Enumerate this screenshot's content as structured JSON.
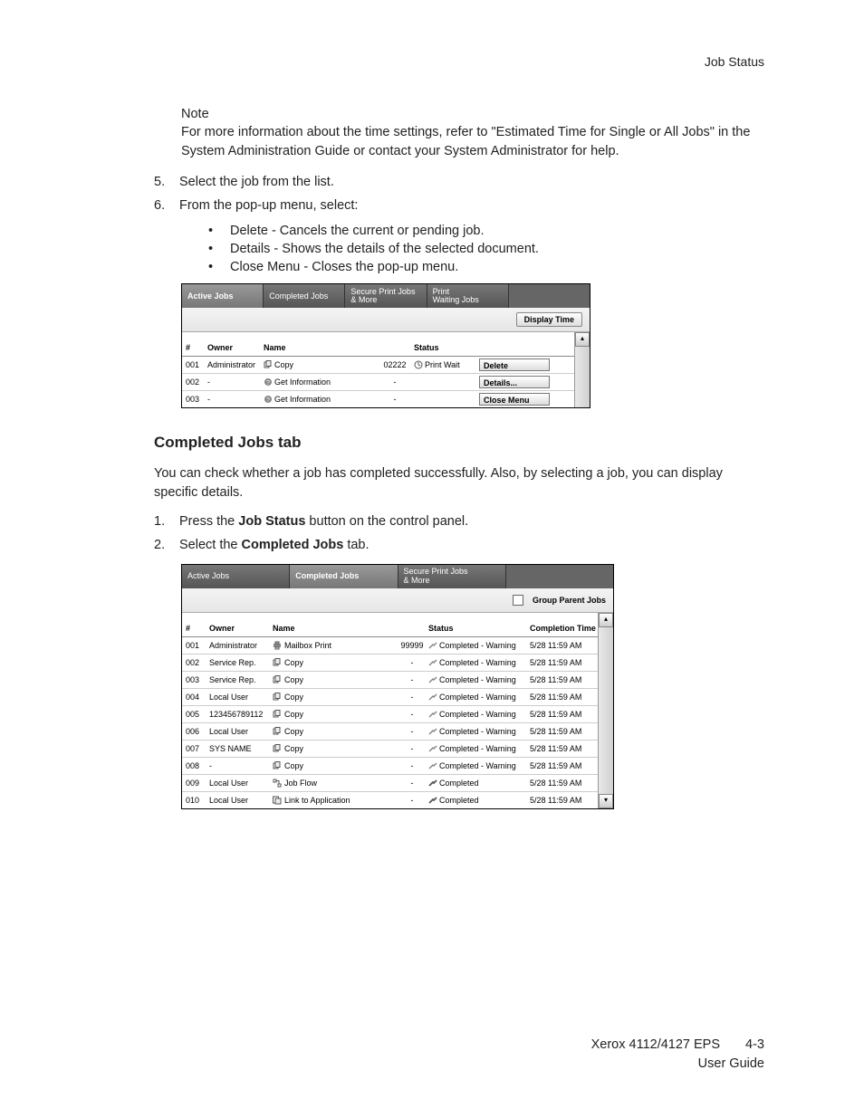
{
  "header": {
    "title": "Job Status"
  },
  "note": {
    "label": "Note",
    "text": "For more information about the time settings, refer to \"Estimated Time for Single or All Jobs\" in the System Administration Guide or contact your System Administrator for help."
  },
  "steps_a": [
    {
      "num": "5.",
      "text": "Select the job from the list."
    },
    {
      "num": "6.",
      "text": "From the pop-up menu, select:"
    }
  ],
  "bullets_a": [
    "Delete - Cancels the current or pending job.",
    "Details - Shows the details of the selected document.",
    "Close Menu - Closes the pop-up menu."
  ],
  "shot1": {
    "tabs": [
      "Active Jobs",
      "Completed Jobs",
      "Secure Print Jobs\n& More",
      "Print\nWaiting Jobs",
      ""
    ],
    "active_tab": 0,
    "display_btn": "Display Time",
    "columns": {
      "hash": "#",
      "owner": "Owner",
      "name": "Name",
      "status": "Status"
    },
    "menu": [
      "Delete",
      "Details...",
      "Close Menu",
      ""
    ],
    "rows": [
      {
        "n": "001",
        "owner": "Administrator",
        "icon": "copy",
        "name": "Copy",
        "num": "02222",
        "sicon": "printwait",
        "status": "Print Wait"
      },
      {
        "n": "002",
        "owner": "-",
        "icon": "info",
        "name": "Get Information",
        "num": "-",
        "sicon": "",
        "status": ""
      },
      {
        "n": "003",
        "owner": "-",
        "icon": "info",
        "name": "Get Information",
        "num": "-",
        "sicon": "",
        "status": ""
      }
    ]
  },
  "section": {
    "heading": "Completed Jobs tab"
  },
  "para1": "You can check whether a job has completed successfully. Also, by selecting a job, you can display specific details.",
  "steps_b": [
    {
      "num": "1.",
      "pre": "Press the ",
      "bold": "Job Status",
      "post": " button on the control panel."
    },
    {
      "num": "2.",
      "pre": "Select the ",
      "bold": "Completed Jobs",
      "post": " tab."
    }
  ],
  "shot2": {
    "tabs": [
      "Active Jobs",
      "Completed Jobs",
      "Secure Print Jobs\n& More",
      ""
    ],
    "active_tab": 1,
    "group_label": "Group Parent Jobs",
    "columns": {
      "hash": "#",
      "owner": "Owner",
      "name": "Name",
      "status": "Status",
      "time": "Completion Time"
    },
    "rows": [
      {
        "n": "001",
        "owner": "Administrator",
        "icon": "printer",
        "name": "Mailbox Print",
        "num": "99999",
        "sicon": "warn",
        "status": "Completed - Warning",
        "time": "5/28 11:59 AM"
      },
      {
        "n": "002",
        "owner": "Service Rep.",
        "icon": "copy",
        "name": "Copy",
        "num": "-",
        "sicon": "warn",
        "status": "Completed - Warning",
        "time": "5/28 11:59 AM"
      },
      {
        "n": "003",
        "owner": "Service Rep.",
        "icon": "copy",
        "name": "Copy",
        "num": "-",
        "sicon": "warn",
        "status": "Completed - Warning",
        "time": "5/28 11:59 AM"
      },
      {
        "n": "004",
        "owner": "Local User",
        "icon": "copy",
        "name": "Copy",
        "num": "-",
        "sicon": "warn",
        "status": "Completed - Warning",
        "time": "5/28 11:59 AM"
      },
      {
        "n": "005",
        "owner": "123456789112",
        "icon": "copy",
        "name": "Copy",
        "num": "-",
        "sicon": "warn",
        "status": "Completed - Warning",
        "time": "5/28 11:59 AM"
      },
      {
        "n": "006",
        "owner": "Local User",
        "icon": "copy",
        "name": "Copy",
        "num": "-",
        "sicon": "warn",
        "status": "Completed - Warning",
        "time": "5/28 11:59 AM"
      },
      {
        "n": "007",
        "owner": "SYS NAME",
        "icon": "copy",
        "name": "Copy",
        "num": "-",
        "sicon": "warn",
        "status": "Completed - Warning",
        "time": "5/28 11:59 AM"
      },
      {
        "n": "008",
        "owner": "-",
        "icon": "copy",
        "name": "Copy",
        "num": "-",
        "sicon": "warn",
        "status": "Completed - Warning",
        "time": "5/28 11:59 AM"
      },
      {
        "n": "009",
        "owner": "Local User",
        "icon": "flow",
        "name": "Job Flow",
        "num": "-",
        "sicon": "ok",
        "status": "Completed",
        "time": "5/28 11:59 AM"
      },
      {
        "n": "010",
        "owner": "Local User",
        "icon": "link",
        "name": "Link to Application",
        "num": "-",
        "sicon": "ok",
        "status": "Completed",
        "time": "5/28 11:59 AM"
      }
    ]
  },
  "footer": {
    "product": "Xerox 4112/4127 EPS",
    "guide": "User Guide",
    "page": "4-3"
  },
  "icons": {
    "copy": "<svg viewBox='0 0 10 10'><rect x='1' y='2' width='5' height='6' fill='none' stroke='#555'/><rect x='3' y='0.5' width='5' height='6' fill='#eee' stroke='#555'/></svg>",
    "info": "<svg viewBox='0 0 10 10'><circle cx='5' cy='5' r='4' fill='#888'/><text x='5' y='8' font-size='7' text-anchor='middle' fill='#fff'>?</text></svg>",
    "printer": "<svg viewBox='0 0 10 10'><rect x='1' y='3' width='8' height='4' fill='#888'/><rect x='3' y='1' width='4' height='2' fill='#ccc' stroke='#555'/><rect x='3' y='7' width='4' height='2' fill='#fff' stroke='#555'/></svg>",
    "flow": "<svg viewBox='0 0 10 10'><rect x='1' y='1' width='3' height='3' fill='none' stroke='#555'/><rect x='6' y='6' width='3' height='3' fill='none' stroke='#555'/><path d='M4 2.5 H7 V6' fill='none' stroke='#555'/></svg>",
    "link": "<svg viewBox='0 0 10 10'><rect x='0.5' y='1' width='6' height='7' fill='none' stroke='#555'/><rect x='3' y='3' width='6' height='6' fill='#eee' stroke='#555'/></svg>",
    "warn": "<svg viewBox='0 0 10 10'><path d='M1 8 L5 4 L6 5 L9 2' fill='none' stroke='#888' stroke-width='1.5'/></svg>",
    "ok": "<svg viewBox='0 0 10 10'><path d='M1 8 L5 4 L6 5 L9 2' fill='none' stroke='#555' stroke-width='1.8'/></svg>",
    "printwait": "<svg viewBox='0 0 10 10'><circle cx='5' cy='5' r='4' fill='none' stroke='#555'/><path d='M5 5 L5 2 M5 5 L7 6' stroke='#555'/></svg>"
  }
}
